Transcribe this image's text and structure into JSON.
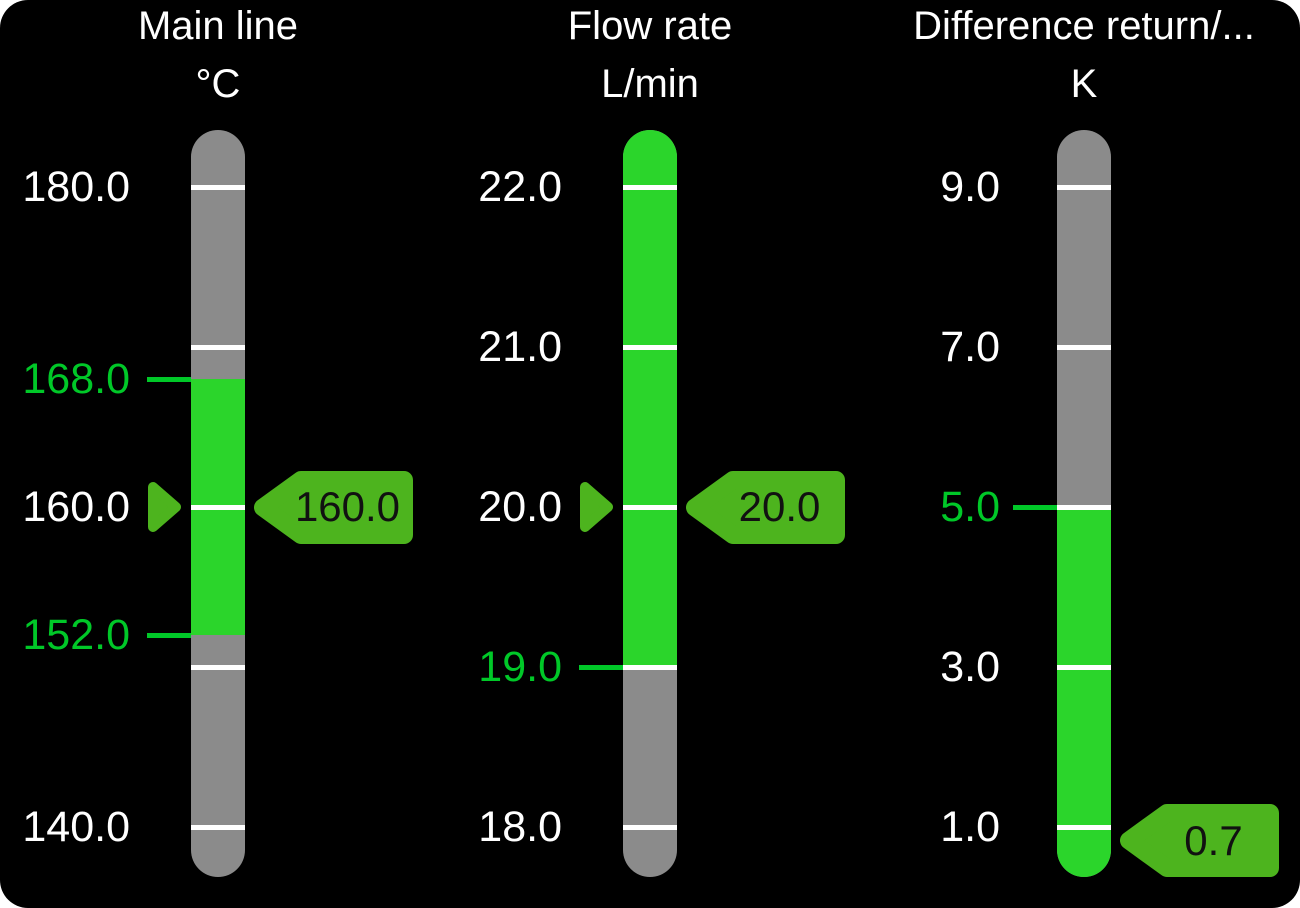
{
  "screen": {
    "description": "HMI panel with three vertical bar gauges"
  },
  "colors": {
    "page_background": "#ffffff",
    "panel_background": "#000000",
    "bar_gray": "#8b8b8b",
    "zone_green": "#2bd52b",
    "marker_green": "#4db41e",
    "limit_green": "#00c828",
    "scale_label_white": "#ffffff",
    "tick_white": "#ffffff",
    "title_white": "#ffffff",
    "badge_text": "#111111"
  },
  "chart_data": [
    {
      "type": "gauge",
      "title": "Main line",
      "unit": "°C",
      "scale_min": 140.0,
      "scale_max": 180.0,
      "major_ticks": [
        180.0,
        170.0,
        160.0,
        150.0,
        140.0
      ],
      "tick_labels": [
        {
          "text": "180.0",
          "value": 180.0,
          "kind": "scale"
        },
        {
          "text": "168.0",
          "value": 168.0,
          "kind": "limit"
        },
        {
          "text": "160.0",
          "value": 160.0,
          "kind": "scale"
        },
        {
          "text": "152.0",
          "value": 152.0,
          "kind": "limit"
        },
        {
          "text": "140.0",
          "value": 140.0,
          "kind": "scale"
        }
      ],
      "green_zone": {
        "high": 168.0,
        "low": 152.0
      },
      "value": 160.0,
      "value_label": "160.0",
      "left_pointer": true
    },
    {
      "type": "gauge",
      "title": "Flow rate",
      "unit": "L/min",
      "scale_min": 18.0,
      "scale_max": 22.0,
      "major_ticks": [
        22.0,
        21.0,
        20.0,
        19.0,
        18.0
      ],
      "tick_labels": [
        {
          "text": "22.0",
          "value": 22.0,
          "kind": "scale"
        },
        {
          "text": "21.0",
          "value": 21.0,
          "kind": "scale"
        },
        {
          "text": "20.0",
          "value": 20.0,
          "kind": "scale"
        },
        {
          "text": "19.0",
          "value": 19.0,
          "kind": "limit"
        },
        {
          "text": "18.0",
          "value": 18.0,
          "kind": "scale"
        }
      ],
      "green_zone": {
        "high": null,
        "low": 19.0
      },
      "value": 20.0,
      "value_label": "20.0",
      "left_pointer": true
    },
    {
      "type": "gauge",
      "title": "Difference return/...",
      "unit": "K",
      "scale_min": 1.0,
      "scale_max": 9.0,
      "major_ticks": [
        9.0,
        7.0,
        5.0,
        3.0,
        1.0
      ],
      "tick_labels": [
        {
          "text": "9.0",
          "value": 9.0,
          "kind": "scale"
        },
        {
          "text": "7.0",
          "value": 7.0,
          "kind": "scale"
        },
        {
          "text": "5.0",
          "value": 5.0,
          "kind": "limit"
        },
        {
          "text": "3.0",
          "value": 3.0,
          "kind": "scale"
        },
        {
          "text": "1.0",
          "value": 1.0,
          "kind": "scale"
        }
      ],
      "green_zone": {
        "high": 5.0,
        "low": null
      },
      "value": 0.7,
      "value_label": "0.7",
      "left_pointer": false
    }
  ]
}
